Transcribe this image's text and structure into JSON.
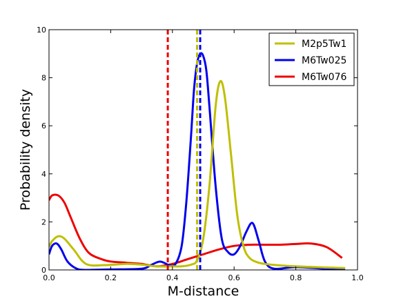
{
  "chart_data": {
    "type": "line",
    "xlabel": "M-distance",
    "ylabel": "Probability density",
    "xlim": [
      0.0,
      1.0
    ],
    "ylim": [
      0,
      10
    ],
    "xticks": [
      "0.0",
      "0.2",
      "0.4",
      "0.6",
      "0.8",
      "1.0"
    ],
    "yticks": [
      "0",
      "2",
      "4",
      "6",
      "8",
      "10"
    ],
    "grid": false,
    "legend": "top-right",
    "series": [
      {
        "name": "M2p5Tw1",
        "color": "#bfbf00",
        "x": [
          0.0,
          0.01,
          0.03,
          0.05,
          0.08,
          0.12,
          0.18,
          0.25,
          0.3,
          0.35,
          0.4,
          0.43,
          0.46,
          0.48,
          0.5,
          0.52,
          0.54,
          0.555,
          0.57,
          0.59,
          0.61,
          0.63,
          0.65,
          0.68,
          0.72,
          0.8,
          0.9,
          0.96
        ],
        "y": [
          0.95,
          1.2,
          1.4,
          1.3,
          0.85,
          0.25,
          0.2,
          0.25,
          0.22,
          0.15,
          0.15,
          0.15,
          0.22,
          0.4,
          1.3,
          3.5,
          6.8,
          7.85,
          7.2,
          4.8,
          2.3,
          1.0,
          0.5,
          0.3,
          0.22,
          0.15,
          0.1,
          0.08
        ]
      },
      {
        "name": "M6Tw025",
        "color": "#0000ee",
        "x": [
          0.0,
          0.01,
          0.025,
          0.04,
          0.06,
          0.09,
          0.12,
          0.2,
          0.3,
          0.33,
          0.36,
          0.39,
          0.41,
          0.43,
          0.445,
          0.46,
          0.47,
          0.48,
          0.49,
          0.5,
          0.51,
          0.52,
          0.54,
          0.56,
          0.58,
          0.6,
          0.62,
          0.64,
          0.66,
          0.68,
          0.7,
          0.73,
          0.8,
          0.9,
          0.96
        ],
        "y": [
          0.65,
          1.0,
          1.1,
          0.85,
          0.35,
          0.05,
          0.0,
          0.02,
          0.05,
          0.2,
          0.35,
          0.2,
          0.25,
          1.0,
          2.8,
          5.5,
          7.5,
          8.6,
          9.0,
          8.9,
          8.3,
          6.8,
          3.5,
          1.3,
          0.75,
          0.65,
          1.0,
          1.6,
          1.95,
          1.2,
          0.35,
          0.05,
          0.12,
          0.05,
          0.02
        ]
      },
      {
        "name": "M6Tw076",
        "color": "#ee0000",
        "x": [
          0.0,
          0.01,
          0.03,
          0.05,
          0.07,
          0.1,
          0.13,
          0.17,
          0.2,
          0.25,
          0.3,
          0.35,
          0.4,
          0.45,
          0.5,
          0.55,
          0.6,
          0.65,
          0.7,
          0.75,
          0.8,
          0.85,
          0.9,
          0.95
        ],
        "y": [
          2.9,
          3.1,
          3.1,
          2.8,
          2.2,
          1.3,
          0.7,
          0.45,
          0.35,
          0.3,
          0.25,
          0.15,
          0.25,
          0.45,
          0.65,
          0.85,
          1.0,
          1.05,
          1.05,
          1.05,
          1.08,
          1.1,
          0.95,
          0.5
        ]
      }
    ],
    "vlines": [
      {
        "x": 0.385,
        "color": "#ee0000"
      },
      {
        "x": 0.48,
        "color": "#bfbf00"
      },
      {
        "x": 0.49,
        "color": "#0000ee"
      }
    ]
  }
}
